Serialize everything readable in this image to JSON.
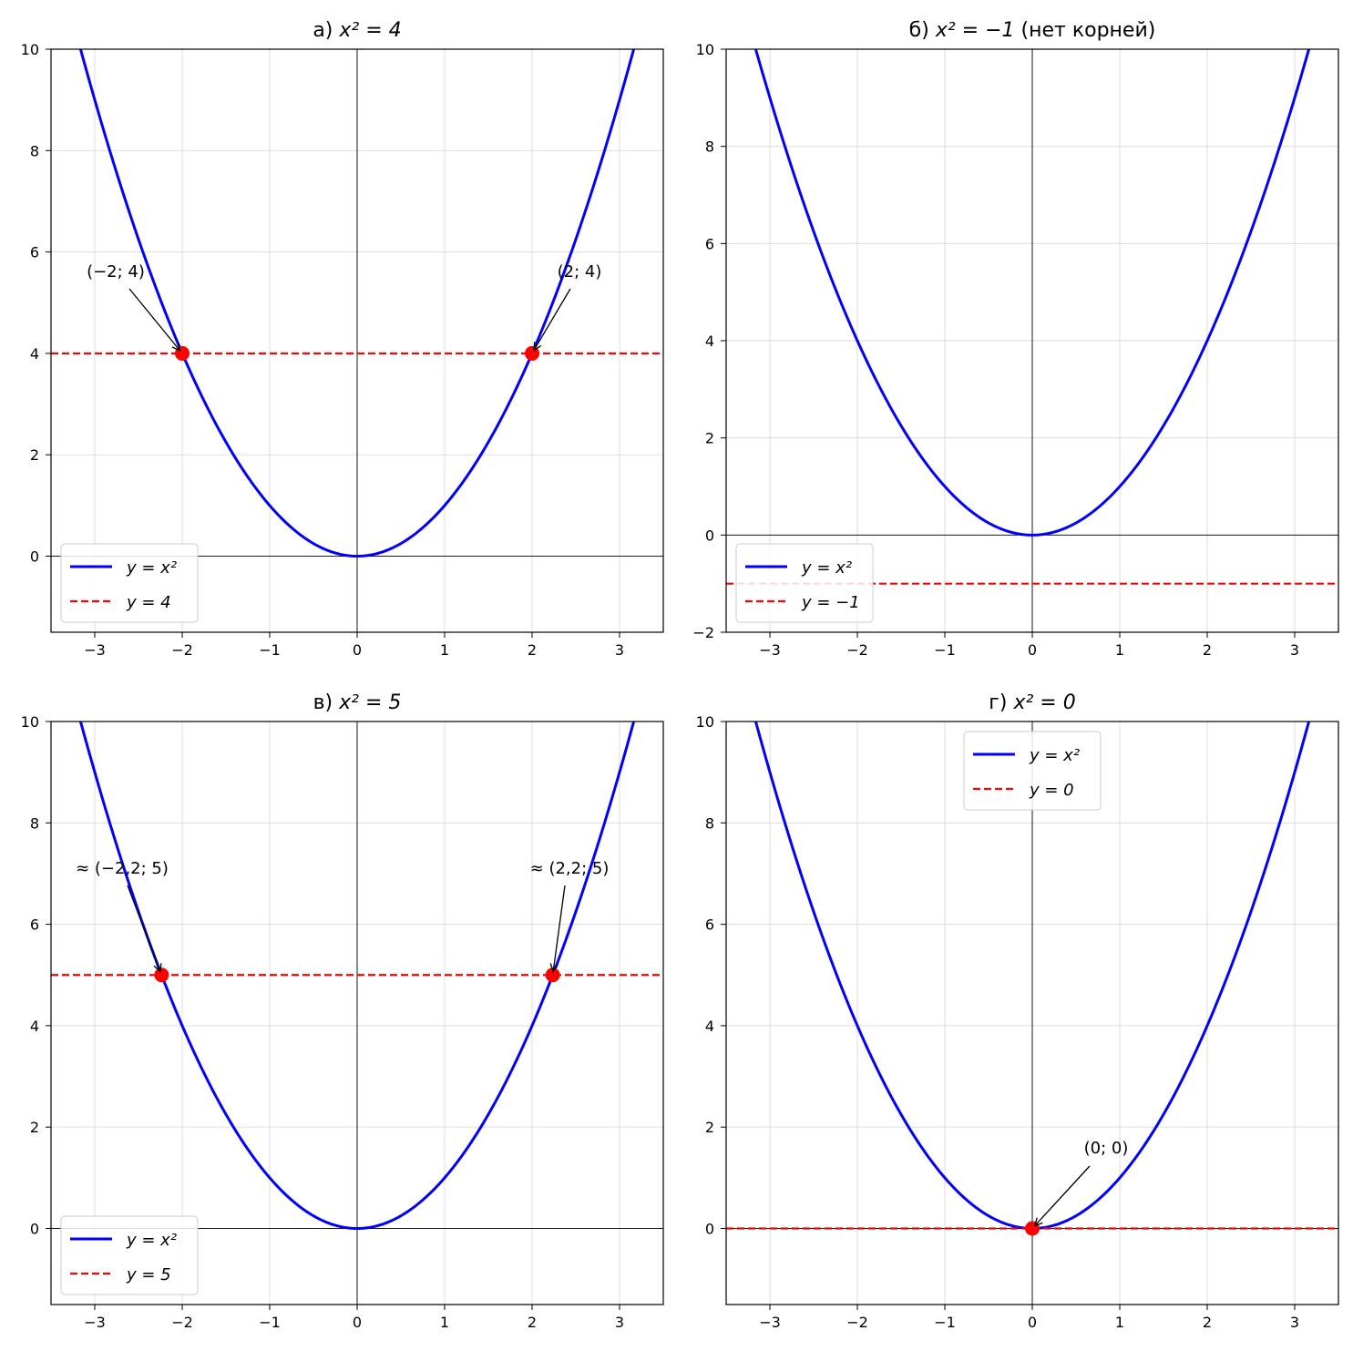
{
  "chart_data": [
    {
      "type": "line",
      "title": {
        "prefix": "а) ",
        "math": "x² = 4",
        "suffix": ""
      },
      "xlim": [
        -3.5,
        3.5
      ],
      "ylim": [
        -1.5,
        10
      ],
      "xticks": [
        -3,
        -2,
        -1,
        0,
        1,
        2,
        3
      ],
      "xtick_labels": [
        "−3",
        "−2",
        "−1",
        "0",
        "1",
        "2",
        "3"
      ],
      "yticks": [
        0,
        2,
        4,
        6,
        8,
        10
      ],
      "ytick_labels": [
        "0",
        "2",
        "4",
        "6",
        "8",
        "10"
      ],
      "grid": true,
      "legend_placement": "lower-left",
      "series": [
        {
          "name": "y = x²",
          "function": "x^2",
          "color": "#0000ff",
          "style": "solid"
        },
        {
          "name": "y = 4",
          "function": "4",
          "color": "#ff0000",
          "style": "dashed",
          "value": 4
        }
      ],
      "points": [
        {
          "x": -2,
          "y": 4,
          "label": "(−2; 4)"
        },
        {
          "x": 2,
          "y": 4,
          "label": "(2; 4)"
        }
      ]
    },
    {
      "type": "line",
      "title": {
        "prefix": "б) ",
        "math": "x² = −1",
        "suffix": " (нет корней)"
      },
      "xlim": [
        -3.5,
        3.5
      ],
      "ylim": [
        -2,
        10
      ],
      "xticks": [
        -3,
        -2,
        -1,
        0,
        1,
        2,
        3
      ],
      "xtick_labels": [
        "−3",
        "−2",
        "−1",
        "0",
        "1",
        "2",
        "3"
      ],
      "yticks": [
        -2,
        0,
        2,
        4,
        6,
        8,
        10
      ],
      "ytick_labels": [
        "−2",
        "0",
        "2",
        "4",
        "6",
        "8",
        "10"
      ],
      "grid": true,
      "legend_placement": "lower-left",
      "series": [
        {
          "name": "y = x²",
          "function": "x^2",
          "color": "#0000ff",
          "style": "solid"
        },
        {
          "name": "y = −1",
          "function": "-1",
          "color": "#ff0000",
          "style": "dashed",
          "value": -1
        }
      ],
      "points": []
    },
    {
      "type": "line",
      "title": {
        "prefix": "в) ",
        "math": "x² = 5",
        "suffix": ""
      },
      "xlim": [
        -3.5,
        3.5
      ],
      "ylim": [
        -1.5,
        10
      ],
      "xticks": [
        -3,
        -2,
        -1,
        0,
        1,
        2,
        3
      ],
      "xtick_labels": [
        "−3",
        "−2",
        "−1",
        "0",
        "1",
        "2",
        "3"
      ],
      "yticks": [
        0,
        2,
        4,
        6,
        8,
        10
      ],
      "ytick_labels": [
        "0",
        "2",
        "4",
        "6",
        "8",
        "10"
      ],
      "grid": true,
      "legend_placement": "lower-left",
      "series": [
        {
          "name": "y = x²",
          "function": "x^2",
          "color": "#0000ff",
          "style": "solid"
        },
        {
          "name": "y = 5",
          "function": "5",
          "color": "#ff0000",
          "style": "dashed",
          "value": 5
        }
      ],
      "points": [
        {
          "x": -2.236,
          "y": 5,
          "label": "≈ (−2,2; 5)"
        },
        {
          "x": 2.236,
          "y": 5,
          "label": "≈ (2,2; 5)"
        }
      ]
    },
    {
      "type": "line",
      "title": {
        "prefix": "г) ",
        "math": "x² = 0",
        "suffix": ""
      },
      "xlim": [
        -3.5,
        3.5
      ],
      "ylim": [
        -1.5,
        10
      ],
      "xticks": [
        -3,
        -2,
        -1,
        0,
        1,
        2,
        3
      ],
      "xtick_labels": [
        "−3",
        "−2",
        "−1",
        "0",
        "1",
        "2",
        "3"
      ],
      "yticks": [
        0,
        2,
        4,
        6,
        8,
        10
      ],
      "ytick_labels": [
        "0",
        "2",
        "4",
        "6",
        "8",
        "10"
      ],
      "grid": true,
      "legend_placement": "upper-center",
      "series": [
        {
          "name": "y = x²",
          "function": "x^2",
          "color": "#0000ff",
          "style": "solid"
        },
        {
          "name": "y = 0",
          "function": "0",
          "color": "#ff0000",
          "style": "dashed",
          "value": 0
        }
      ],
      "points": [
        {
          "x": 0,
          "y": 0,
          "label": "(0; 0)"
        }
      ]
    }
  ]
}
